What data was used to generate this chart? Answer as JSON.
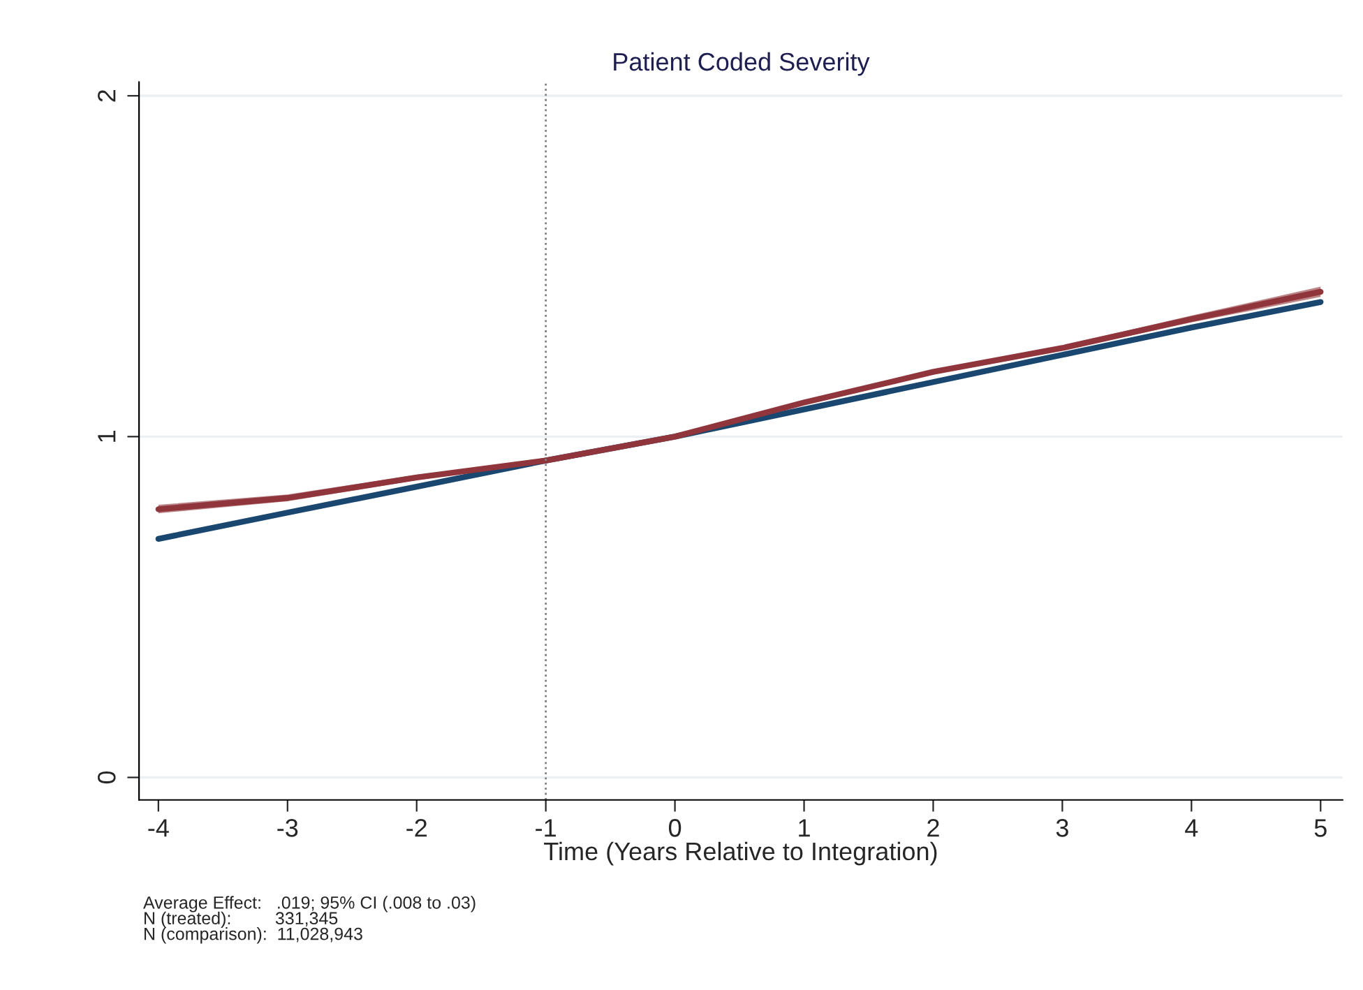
{
  "chart_data": {
    "type": "line",
    "title": "Patient Coded Severity",
    "xlabel": "Time (Years Relative to Integration)",
    "x": [
      -4,
      -3,
      -2,
      -1,
      0,
      1,
      2,
      3,
      4,
      5
    ],
    "series": [
      {
        "color": "#1a476f",
        "values": [
          0.7,
          0.777,
          0.853,
          0.93,
          1.0,
          1.08,
          1.16,
          1.24,
          1.32,
          1.395
        ]
      },
      {
        "color": "#90353b",
        "values": [
          0.787,
          0.82,
          0.88,
          0.93,
          1.0,
          1.1,
          1.19,
          1.26,
          1.345,
          1.425
        ],
        "lower": [
          0.775,
          0.81,
          0.872,
          0.928,
          0.998,
          1.095,
          1.184,
          1.253,
          1.335,
          1.41
        ],
        "upper": [
          0.8,
          0.83,
          0.888,
          0.932,
          1.002,
          1.105,
          1.196,
          1.267,
          1.355,
          1.44
        ]
      }
    ],
    "xlim": [
      -4.15,
      5.17
    ],
    "xticks": [
      -4,
      -3,
      -2,
      -1,
      0,
      1,
      2,
      3,
      4,
      5
    ],
    "ylim": [
      -0.066,
      2.04
    ],
    "yticks": [
      0,
      1,
      2
    ],
    "grid": "y",
    "marker": "none",
    "line_style": "solid",
    "legend": false,
    "ref_lines": [
      {
        "axis": "x",
        "value": -1,
        "color": "#808080",
        "line_style": "dotted"
      }
    ],
    "annotations": [
      "Average Effect:   .019; 95% CI (.008 to .03)\nN (treated):         331,345\nN (comparison):  11,028,943"
    ]
  }
}
